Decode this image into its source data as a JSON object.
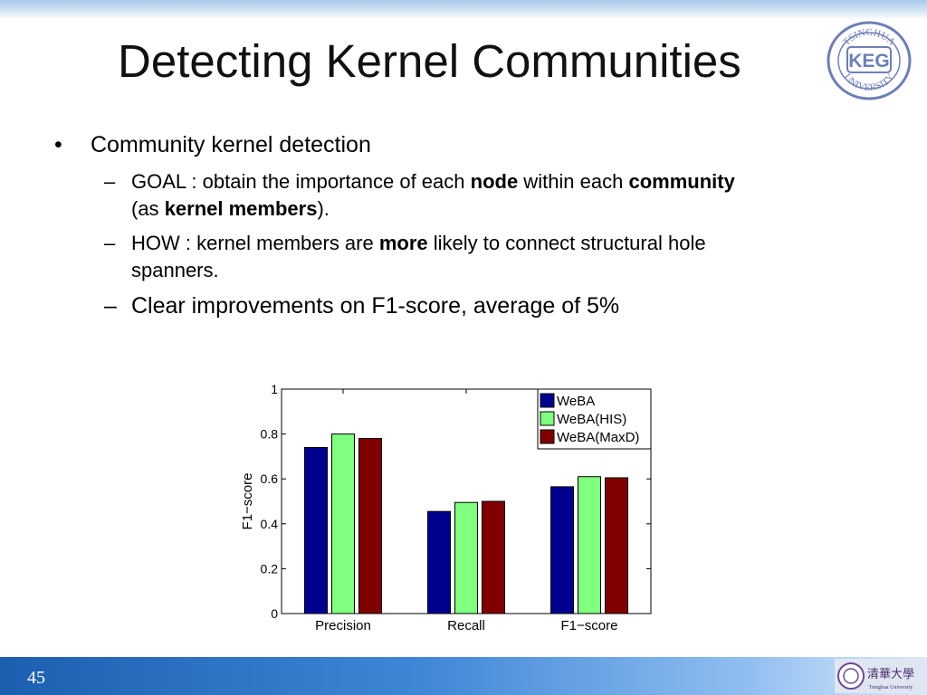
{
  "slide": {
    "title": "Detecting Kernel Communities",
    "page_number": "45",
    "logo_text": {
      "top": "TSINGHUA",
      "center": "KEG",
      "bottom": "UNIVERSITY"
    },
    "footer_logo_text": {
      "main": "清華大學",
      "sub": "Tsinghua University"
    }
  },
  "bullets": {
    "main": "Community kernel detection",
    "goal": {
      "prefix": "GOAL :  obtain the importance of each ",
      "bold1": "node",
      "mid": " within each ",
      "bold2": "community",
      "line2_prefix": "(as ",
      "bold3": "kernel members",
      "line2_suffix": ")."
    },
    "how": {
      "prefix": "HOW :  kernel members are ",
      "bold1": "more",
      "suffix": " likely to connect structural hole",
      "line2": "spanners."
    },
    "result": "Clear improvements on F1-score, average of 5%"
  },
  "chart_data": {
    "type": "bar",
    "categories": [
      "Precision",
      "Recall",
      "F1−score"
    ],
    "series": [
      {
        "name": "WeBA",
        "color": "#00008f",
        "values": [
          0.74,
          0.455,
          0.565
        ]
      },
      {
        "name": "WeBA(HIS)",
        "color": "#80ff80",
        "values": [
          0.8,
          0.495,
          0.61
        ]
      },
      {
        "name": "WeBA(MaxD)",
        "color": "#800000",
        "values": [
          0.78,
          0.5,
          0.605
        ]
      }
    ],
    "ylabel": "F1−score",
    "ylim": [
      0,
      1
    ],
    "yticks": [
      "0",
      "0.2",
      "0.4",
      "0.6",
      "0.8",
      "1"
    ],
    "grid": false,
    "legend_position": "top-right"
  }
}
